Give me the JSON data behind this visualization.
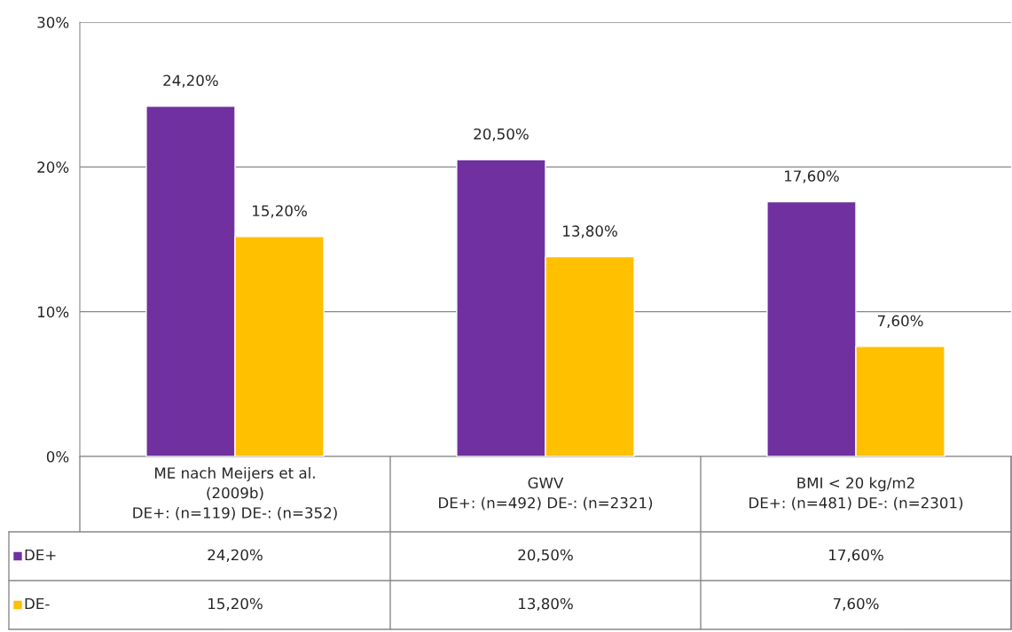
{
  "chart_data": {
    "type": "bar",
    "categories": [
      "ME nach Meijers et al.\n(2009b)\nDE+: (n=119) DE-: (n=352)",
      "GWV\nDE+: (n=492) DE-: (n=2321)",
      "BMI < 20 kg/m2\nDE+: (n=481) DE-: (n=2301)"
    ],
    "series": [
      {
        "name": "DE+",
        "color": "#7030a0",
        "values": [
          24.2,
          20.5,
          17.6
        ],
        "value_labels": [
          "24,20%",
          "20,50%",
          "17,60%"
        ]
      },
      {
        "name": "DE-",
        "color": "#ffc000",
        "values": [
          15.2,
          13.8,
          7.6
        ],
        "value_labels": [
          "15,20%",
          "13,80%",
          "7,60%"
        ]
      }
    ],
    "ylim": [
      0,
      30
    ],
    "yticks": [
      {
        "value": 0,
        "label": "0%"
      },
      {
        "value": 10,
        "label": "10%"
      },
      {
        "value": 20,
        "label": "20%"
      },
      {
        "value": 30,
        "label": "30%"
      }
    ],
    "grid": "y",
    "legend": "bottom"
  }
}
